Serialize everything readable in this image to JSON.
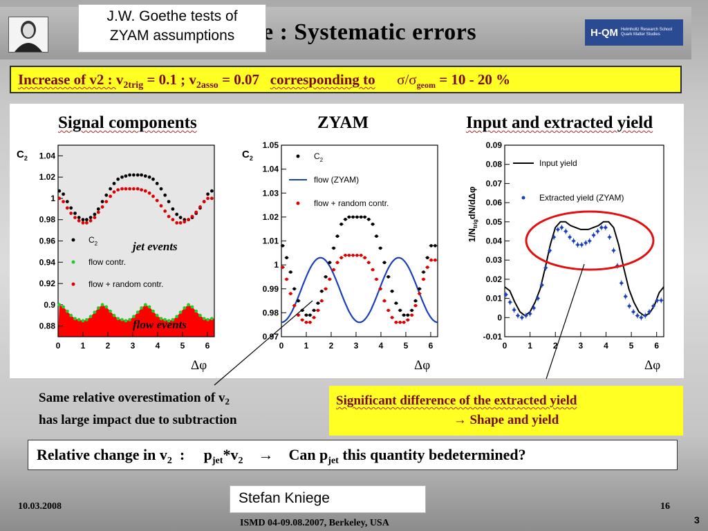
{
  "slide": {
    "title": "e : Systematic errors",
    "hqm_name": "H-QM",
    "hqm_sub_1": "Helmholtz Research School",
    "hqm_sub_2": "Quark Matter Studies",
    "callout_top_1": "J.W. Goethe tests of",
    "callout_top_2": "ZYAM assumptions"
  },
  "banner": {
    "p1": "Increase of v2 : ",
    "v1": "v",
    "v1_sub": "2trig",
    "v1_val": " = 0.1 ; ",
    "v2": "v",
    "v2_sub": "2asso",
    "v2_val": " = 0.07",
    "p2": "corresponding to",
    "sigma": "σ/σ",
    "sigma_sub": "geom",
    "sigma_val": " = 10 - 20 %"
  },
  "panels": {
    "left_title": "Signal components",
    "mid_title": "ZYAM",
    "right_title": "Input and extracted yield"
  },
  "axes": {
    "xlabel": "Δφ",
    "left_ylabel": "C",
    "left_ylabel_sub": "2",
    "right_ylabel": "1/N",
    "right_ylabel_sub": "trig",
    "right_ylabel_tail": "dN/dΔφ"
  },
  "legend": {
    "c2": "C",
    "c2_sub": "2",
    "flow_contr": "flow contr.",
    "flow_random": "flow + random contr.",
    "flow_zyam": "flow (ZYAM)",
    "input_yield": "Input yield",
    "extracted": "Extracted yield (ZYAM)"
  },
  "annotations": {
    "jet_events": "jet events",
    "flow_events": "flow events"
  },
  "notes": {
    "left_1": "Same relative overestimation of v",
    "left_1_sub": "2",
    "left_2": "has large impact due to subtraction",
    "right_1": "Significant difference of the extracted yield",
    "right_2": "→ Shape and yield",
    "rel_1": "Relative change in v",
    "rel_1_sub": "2",
    "rel_2": "  :     p",
    "rel_2_sub": "jet",
    "rel_3": "*v",
    "rel_3_sub": "2",
    "rel_4": "    →    Can p",
    "rel_4_sub": "jet",
    "rel_5": " this quantity bedetermined?"
  },
  "footer": {
    "date": "10.03.2008",
    "conference": "ISMD 04-09.08.2007, Berkeley, USA",
    "page": "16",
    "slide_no": "3",
    "speaker": "Stefan Kniege"
  },
  "chart_data": [
    {
      "type": "scatter",
      "title": "Signal components",
      "xlabel": "Δφ",
      "ylabel": "C2",
      "xlim": [
        0,
        6.28
      ],
      "ylim": [
        0.87,
        1.05
      ],
      "x_ticks": [
        0,
        1,
        2,
        3,
        4,
        5,
        6
      ],
      "y_ticks": [
        0.88,
        0.9,
        0.92,
        0.94,
        0.96,
        0.98,
        1.0,
        1.02,
        1.04
      ],
      "y_tick_labels": [
        "0.88",
        "0.9",
        "0.92",
        "0.94",
        "0.96",
        "0.98",
        "1",
        "1.02",
        "1.04"
      ],
      "x": [
        0.05,
        0.21,
        0.37,
        0.52,
        0.68,
        0.84,
        1.0,
        1.15,
        1.31,
        1.47,
        1.62,
        1.78,
        1.94,
        2.1,
        2.25,
        2.41,
        2.57,
        2.72,
        2.88,
        3.04,
        3.2,
        3.35,
        3.51,
        3.67,
        3.82,
        3.98,
        4.14,
        4.3,
        4.45,
        4.61,
        4.77,
        4.92,
        5.08,
        5.24,
        5.39,
        5.55,
        5.71,
        5.87,
        6.02,
        6.18
      ],
      "series": [
        {
          "name": "C2",
          "color": "#000000",
          "values": [
            1.007,
            1.004,
            0.997,
            0.991,
            0.986,
            0.982,
            0.98,
            0.98,
            0.982,
            0.985,
            0.99,
            0.997,
            1.003,
            1.009,
            1.014,
            1.018,
            1.02,
            1.021,
            1.022,
            1.022,
            1.022,
            1.022,
            1.021,
            1.02,
            1.018,
            1.014,
            1.009,
            1.003,
            0.997,
            0.99,
            0.985,
            0.982,
            0.98,
            0.98,
            0.982,
            0.986,
            0.991,
            0.997,
            1.004,
            1.007
          ]
        },
        {
          "name": "flow contr.",
          "color": "#22cc22",
          "values": [
            0.9,
            0.898,
            0.894,
            0.89,
            0.887,
            0.886,
            0.885,
            0.886,
            0.889,
            0.893,
            0.897,
            0.9,
            0.898,
            0.894,
            0.89,
            0.887,
            0.886,
            0.885,
            0.886,
            0.889,
            0.893,
            0.897,
            0.9,
            0.898,
            0.894,
            0.89,
            0.887,
            0.886,
            0.885,
            0.886,
            0.889,
            0.893,
            0.897,
            0.9,
            0.898,
            0.894,
            0.89,
            0.887,
            0.886,
            0.887
          ]
        },
        {
          "name": "flow + random contr.",
          "color": "#dd0000",
          "values": [
            1.0,
            0.997,
            0.991,
            0.986,
            0.982,
            0.979,
            0.977,
            0.977,
            0.979,
            0.982,
            0.987,
            0.992,
            0.997,
            1.002,
            1.006,
            1.008,
            1.009,
            1.009,
            1.009,
            1.009,
            1.009,
            1.008,
            1.007,
            1.005,
            1.002,
            0.998,
            0.993,
            0.988,
            0.983,
            0.98,
            0.977,
            0.977,
            0.978,
            0.98,
            0.983,
            0.987,
            0.992,
            0.997,
            1.0,
            1.0
          ]
        }
      ]
    },
    {
      "type": "scatter",
      "title": "ZYAM",
      "xlabel": "Δφ",
      "ylabel": "C2",
      "xlim": [
        0,
        6.28
      ],
      "ylim": [
        0.97,
        1.05
      ],
      "x_ticks": [
        0,
        1,
        2,
        3,
        4,
        5,
        6
      ],
      "y_ticks": [
        0.97,
        0.98,
        0.99,
        1.0,
        1.01,
        1.02,
        1.03,
        1.04,
        1.05
      ],
      "y_tick_labels": [
        "0.97",
        "0.98",
        "0.99",
        "1",
        "1.01",
        "1.02",
        "1.03",
        "1.04",
        "1.05"
      ],
      "x": [
        0.05,
        0.21,
        0.37,
        0.52,
        0.68,
        0.84,
        1.0,
        1.15,
        1.31,
        1.47,
        1.62,
        1.78,
        1.94,
        2.1,
        2.25,
        2.41,
        2.57,
        2.72,
        2.88,
        3.04,
        3.2,
        3.35,
        3.51,
        3.67,
        3.82,
        3.98,
        4.14,
        4.3,
        4.45,
        4.61,
        4.77,
        4.92,
        5.08,
        5.24,
        5.39,
        5.55,
        5.71,
        5.87,
        6.02,
        6.18
      ],
      "series": [
        {
          "name": "C2",
          "color": "#000000",
          "values": [
            1.008,
            1.003,
            0.997,
            0.99,
            0.985,
            0.981,
            0.979,
            0.979,
            0.981,
            0.984,
            0.989,
            0.995,
            1.001,
            1.007,
            1.012,
            1.017,
            1.019,
            1.02,
            1.02,
            1.02,
            1.02,
            1.02,
            1.019,
            1.017,
            1.012,
            1.007,
            1.001,
            0.995,
            0.989,
            0.984,
            0.981,
            0.979,
            0.979,
            0.981,
            0.985,
            0.99,
            0.997,
            1.003,
            1.008,
            1.008
          ]
        },
        {
          "name": "flow + random contr.",
          "color": "#dd0000",
          "values": [
            0.999,
            0.994,
            0.988,
            0.983,
            0.979,
            0.977,
            0.976,
            0.976,
            0.978,
            0.981,
            0.985,
            0.99,
            0.994,
            0.998,
            1.001,
            1.003,
            1.004,
            1.004,
            1.004,
            1.004,
            1.004,
            1.003,
            1.001,
            0.998,
            0.994,
            0.99,
            0.985,
            0.981,
            0.978,
            0.976,
            0.976,
            0.976,
            0.977,
            0.979,
            0.983,
            0.988,
            0.994,
            0.999,
            1.002,
            1.002
          ]
        }
      ],
      "curves": [
        {
          "name": "flow (ZYAM)",
          "color": "#1a3fb8",
          "baseline": 0.9895,
          "amplitude": 0.0135,
          "form": "baseline - amplitude*cos(2x)"
        }
      ]
    },
    {
      "type": "line",
      "title": "Input and extracted yield",
      "xlabel": "Δφ",
      "ylabel": "1/Ntrig dN/dΔφ",
      "xlim": [
        0,
        6.28
      ],
      "ylim": [
        -0.01,
        0.09
      ],
      "x_ticks": [
        0,
        1,
        2,
        3,
        4,
        5,
        6
      ],
      "y_ticks": [
        -0.01,
        0,
        0.01,
        0.02,
        0.03,
        0.04,
        0.05,
        0.06,
        0.07,
        0.08,
        0.09
      ],
      "y_tick_labels": [
        "-0.01",
        "0",
        "0.01",
        "0.02",
        "0.03",
        "0.04",
        "0.05",
        "0.06",
        "0.07",
        "0.08",
        "0.09"
      ],
      "series": [
        {
          "name": "Input yield",
          "color": "#000000",
          "x": [
            0.0,
            0.2,
            0.4,
            0.6,
            0.8,
            1.0,
            1.2,
            1.4,
            1.6,
            1.8,
            2.0,
            2.2,
            2.4,
            2.6,
            2.8,
            3.0,
            3.14,
            3.3,
            3.5,
            3.7,
            3.9,
            4.1,
            4.3,
            4.5,
            4.7,
            4.9,
            5.1,
            5.3,
            5.5,
            5.7,
            5.9,
            6.1,
            6.28
          ],
          "values": [
            0.016,
            0.014,
            0.008,
            0.003,
            0.001,
            0.003,
            0.008,
            0.015,
            0.026,
            0.038,
            0.047,
            0.05,
            0.05,
            0.048,
            0.047,
            0.046,
            0.046,
            0.046,
            0.047,
            0.048,
            0.05,
            0.05,
            0.047,
            0.038,
            0.026,
            0.015,
            0.008,
            0.003,
            0.001,
            0.002,
            0.006,
            0.013,
            0.016
          ]
        },
        {
          "name": "Extracted yield (ZYAM)",
          "color": "#1a3fb8",
          "x": [
            0.05,
            0.21,
            0.37,
            0.52,
            0.68,
            0.84,
            1.0,
            1.15,
            1.31,
            1.47,
            1.62,
            1.78,
            1.94,
            2.1,
            2.25,
            2.41,
            2.57,
            2.72,
            2.88,
            3.04,
            3.2,
            3.35,
            3.51,
            3.67,
            3.82,
            3.98,
            4.14,
            4.3,
            4.45,
            4.61,
            4.77,
            4.92,
            5.08,
            5.24,
            5.39,
            5.55,
            5.71,
            5.87,
            6.02,
            6.18
          ],
          "values": [
            0.012,
            0.008,
            0.004,
            0.001,
            0.0,
            0.001,
            0.002,
            0.005,
            0.01,
            0.017,
            0.026,
            0.035,
            0.042,
            0.046,
            0.047,
            0.045,
            0.042,
            0.04,
            0.038,
            0.038,
            0.039,
            0.04,
            0.043,
            0.045,
            0.047,
            0.047,
            0.042,
            0.035,
            0.027,
            0.018,
            0.011,
            0.006,
            0.003,
            0.001,
            0.0,
            0.001,
            0.003,
            0.006,
            0.009,
            0.009
          ]
        }
      ]
    }
  ]
}
